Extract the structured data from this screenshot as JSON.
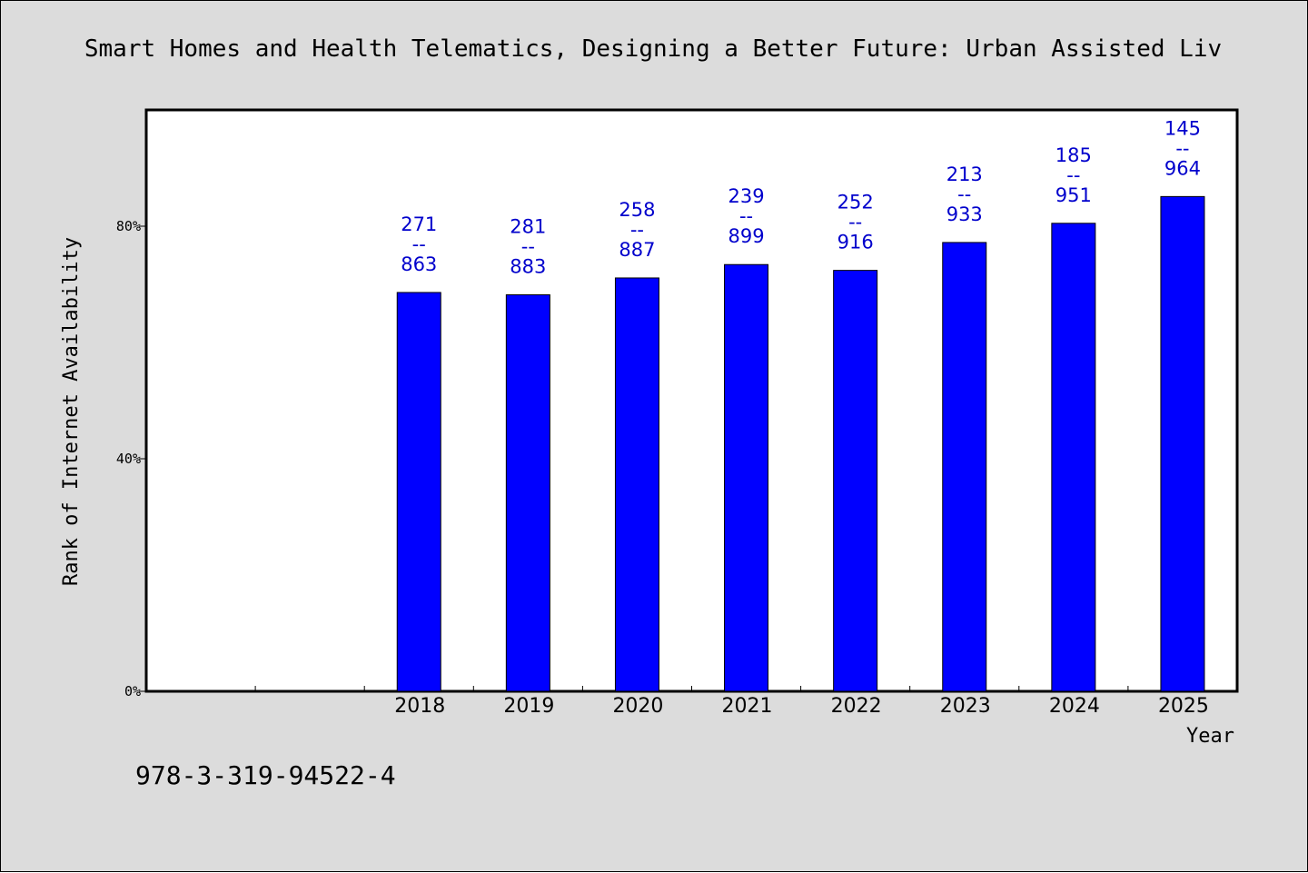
{
  "chart_data": {
    "type": "bar",
    "title": "Smart Homes and Health Telematics, Designing a Better Future: Urban Assisted Liv",
    "xlabel": "Year",
    "ylabel": "Rank of Internet Availability",
    "categories": [
      "",
      "",
      "2018",
      "2019",
      "2020",
      "2021",
      "2022",
      "2023",
      "2024",
      "2025"
    ],
    "values": [
      null,
      null,
      68.6,
      68.2,
      71.1,
      73.4,
      72.4,
      77.2,
      80.5,
      85.1
    ],
    "data_labels": [
      null,
      null,
      [
        "271",
        "--",
        "863"
      ],
      [
        "281",
        "--",
        "883"
      ],
      [
        "258",
        "--",
        "887"
      ],
      [
        "239",
        "--",
        "899"
      ],
      [
        "252",
        "--",
        "916"
      ],
      [
        "213",
        "--",
        "933"
      ],
      [
        "185",
        "--",
        "951"
      ],
      [
        "145",
        "--",
        "964"
      ]
    ],
    "yticks": [
      {
        "value": 0,
        "label": "0%"
      },
      {
        "value": 40,
        "label": "40%"
      },
      {
        "value": 80,
        "label": "80%"
      }
    ],
    "ylim": [
      0,
      100
    ],
    "grid": false,
    "colors": {
      "bar": "#0000ff",
      "label": "#0000cc",
      "background": "#dcdcdc",
      "plot_background": "#ffffff"
    }
  },
  "footer": {
    "isbn": "978-3-319-94522-4"
  }
}
